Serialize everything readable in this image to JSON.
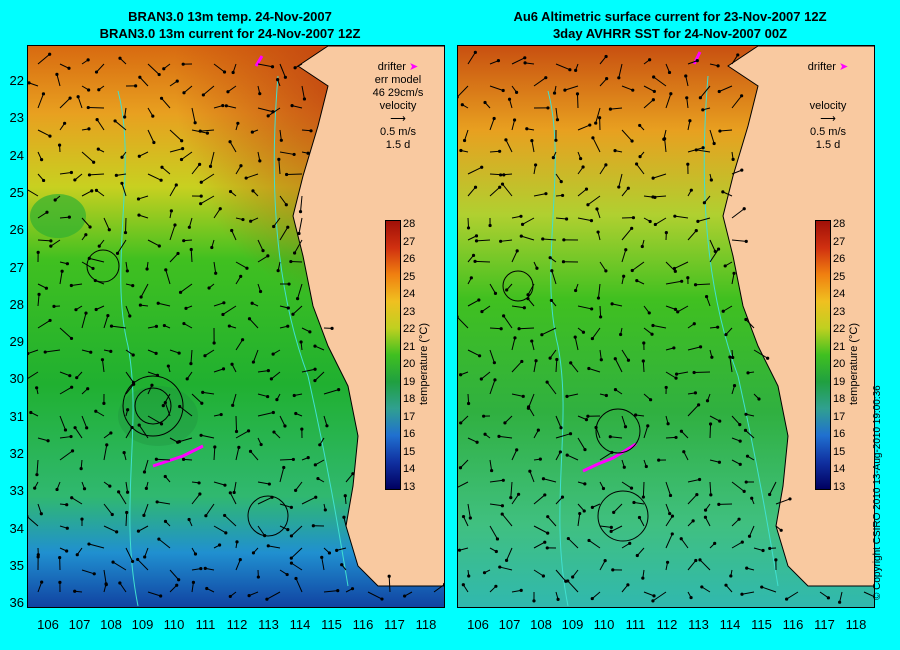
{
  "titles": {
    "left_line1": "BRAN3.0 13m temp. 24-Nov-2007",
    "left_line2": "BRAN3.0 13m current for 24-Nov-2007 12Z",
    "right_line1": "Au6 Altimetric surface current for 23-Nov-2007 12Z",
    "right_line2": "3day AVHRR SST for 24-Nov-2007 00Z"
  },
  "latitude_labels": [
    "22",
    "23",
    "24",
    "25",
    "26",
    "27",
    "28",
    "29",
    "30",
    "31",
    "32",
    "33",
    "34",
    "35",
    "36"
  ],
  "longitude_labels": [
    "106",
    "107",
    "108",
    "109",
    "110",
    "111",
    "112",
    "113",
    "114",
    "115",
    "116",
    "117",
    "118"
  ],
  "legend_left": {
    "drifter": "drifter",
    "err_model": "err model",
    "err_value": "46 29cm/s",
    "velocity": "velocity",
    "speed": "0.5 m/s",
    "duration": "1.5 d"
  },
  "legend_right": {
    "drifter": "drifter",
    "velocity": "velocity",
    "speed": "0.5 m/s",
    "duration": "1.5 d"
  },
  "colorbar": {
    "ticks": [
      "28",
      "27",
      "26",
      "25",
      "24",
      "23",
      "22",
      "21",
      "20",
      "19",
      "18",
      "17",
      "16",
      "15",
      "14",
      "13"
    ],
    "label": "temperature (°C)"
  },
  "copyright": "© Copyright CSIRO 2010   13-Aug-2010 19:00:36",
  "colors": {
    "background": "#00ffff",
    "land": "#f9c9a0",
    "drifter": "#ff00ff",
    "bathymetry": "#40e0d0"
  }
}
